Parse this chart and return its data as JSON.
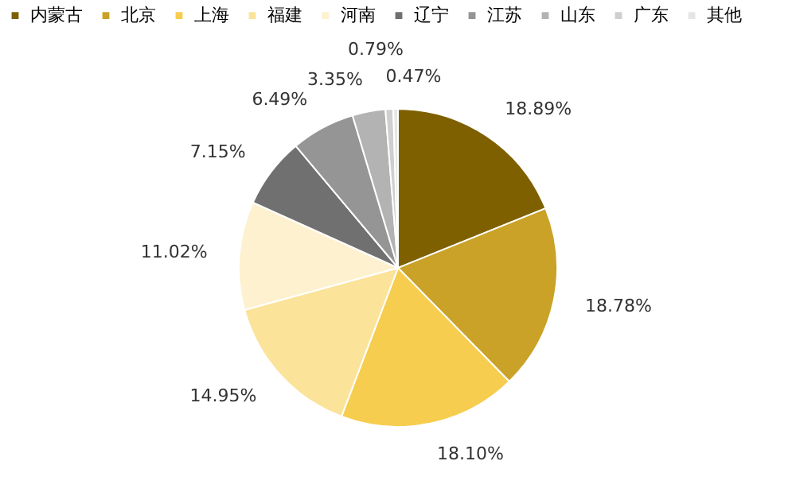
{
  "chart_data": {
    "type": "pie",
    "categories": [
      "内蒙古",
      "北京",
      "上海",
      "福建",
      "河南",
      "辽宁",
      "江苏",
      "山东",
      "广东",
      "其他"
    ],
    "values": [
      18.89,
      18.78,
      18.1,
      14.95,
      11.02,
      7.15,
      6.49,
      3.35,
      0.79,
      0.47
    ],
    "colors": [
      "#7f6000",
      "#c9a227",
      "#f7cd4f",
      "#fbe39a",
      "#fdf1cf",
      "#707070",
      "#959595",
      "#b3b3b3",
      "#cfcfcf",
      "#e6e6e6"
    ],
    "value_labels": [
      "18.89%",
      "18.78%",
      "18.10%",
      "14.95%",
      "11.02%",
      "7.15%",
      "6.49%",
      "3.35%",
      "0.79%",
      "0.47%"
    ],
    "legend": "top"
  }
}
